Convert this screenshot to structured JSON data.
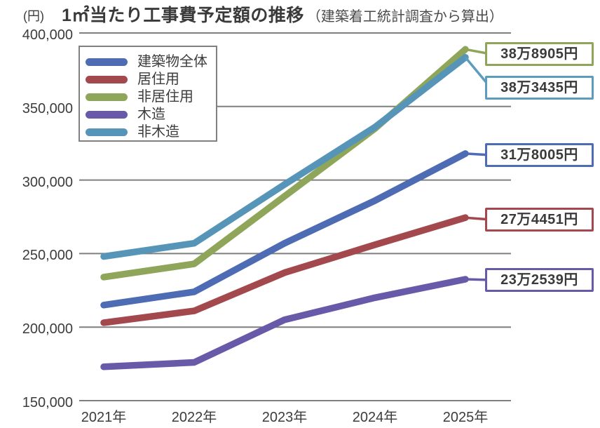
{
  "title": {
    "main": "1㎡当たり工事費予定額の推移",
    "sub": "（建築着工統計調査から算出）"
  },
  "y_axis": {
    "unit_label": "(円)",
    "tick_labels": [
      "400,000",
      "350,000",
      "300,000",
      "250,000",
      "200,000",
      "150,000"
    ],
    "tick_values": [
      400000,
      350000,
      300000,
      250000,
      200000,
      150000
    ]
  },
  "x_axis": {
    "tick_labels": [
      "2021年",
      "2022年",
      "2023年",
      "2024年",
      "2025年"
    ]
  },
  "legend": {
    "items": [
      {
        "label": "建築物全体",
        "color": "#4d6cb3"
      },
      {
        "label": "居住用",
        "color": "#a3494e"
      },
      {
        "label": "非居住用",
        "color": "#8fa65a"
      },
      {
        "label": "木造",
        "color": "#685aa9"
      },
      {
        "label": "非木造",
        "color": "#5695b8"
      }
    ]
  },
  "annotations": [
    {
      "text": "38万8905円",
      "series": "非居住用",
      "color": "#8fa65a"
    },
    {
      "text": "38万3435円",
      "series": "非木造",
      "color": "#5e9cbd"
    },
    {
      "text": "31万8005円",
      "series": "建築物全体",
      "color": "#4d6cb3"
    },
    {
      "text": "27万4451円",
      "series": "居住用",
      "color": "#a3494e"
    },
    {
      "text": "23万2539円",
      "series": "木造",
      "color": "#685aa9"
    }
  ],
  "chart_data": {
    "type": "line",
    "title": "1㎡当たり工事費予定額の推移（建築着工統計調査から算出）",
    "unit": "円",
    "x": [
      "2021年",
      "2022年",
      "2023年",
      "2024年",
      "2025年"
    ],
    "series": [
      {
        "name": "建築物全体",
        "color": "#4d6cb3",
        "values": [
          215000,
          224000,
          257000,
          286000,
          318005
        ]
      },
      {
        "name": "居住用",
        "color": "#a3494e",
        "values": [
          203000,
          211000,
          237000,
          256000,
          274451
        ]
      },
      {
        "name": "非居住用",
        "color": "#8fa65a",
        "values": [
          234000,
          243000,
          289000,
          335000,
          388905
        ]
      },
      {
        "name": "木造",
        "color": "#685aa9",
        "values": [
          173000,
          176000,
          205000,
          220000,
          232539
        ]
      },
      {
        "name": "非木造",
        "color": "#5695b8",
        "values": [
          248000,
          257000,
          297000,
          336000,
          383435
        ]
      }
    ],
    "end_labels": [
      "38万8905円",
      "38万3435円",
      "31万8005円",
      "27万4451円",
      "23万2539円"
    ],
    "ylim": [
      150000,
      400000
    ],
    "y_gridlines": [
      400000,
      350000,
      300000,
      250000,
      200000,
      150000
    ],
    "grid": true,
    "gridline_color": "#7f7f7f",
    "legend_position": "upper-left"
  }
}
